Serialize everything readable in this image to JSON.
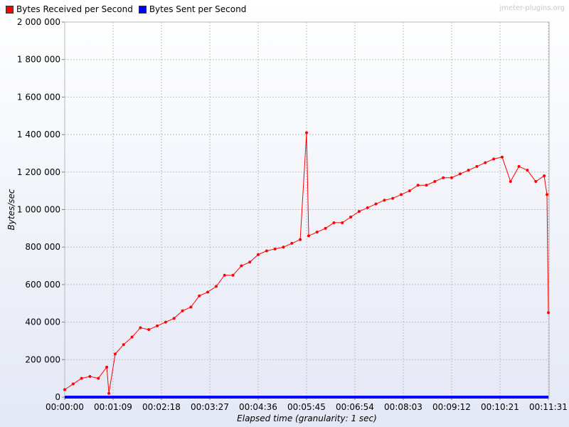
{
  "watermark": "jmeter-plugins.org",
  "chart_data": {
    "type": "line",
    "title": "",
    "xlabel": "Elapsed time (granularity: 1 sec)",
    "ylabel": "Bytes/sec",
    "xlim": [
      0,
      691
    ],
    "ylim": [
      0,
      2000000
    ],
    "grid": true,
    "legend_position": "top-left",
    "x_ticks": [
      {
        "value": 0,
        "label": "00:00:00"
      },
      {
        "value": 69,
        "label": "00:01:09"
      },
      {
        "value": 138,
        "label": "00:02:18"
      },
      {
        "value": 207,
        "label": "00:03:27"
      },
      {
        "value": 276,
        "label": "00:04:36"
      },
      {
        "value": 345,
        "label": "00:05:45"
      },
      {
        "value": 414,
        "label": "00:06:54"
      },
      {
        "value": 483,
        "label": "00:08:03"
      },
      {
        "value": 552,
        "label": "00:09:12"
      },
      {
        "value": 621,
        "label": "00:10:21"
      },
      {
        "value": 690,
        "label": "00:11:31"
      }
    ],
    "y_ticks": [
      {
        "value": 0,
        "label": "0"
      },
      {
        "value": 200000,
        "label": "200 000"
      },
      {
        "value": 400000,
        "label": "400 000"
      },
      {
        "value": 600000,
        "label": "600 000"
      },
      {
        "value": 800000,
        "label": "800 000"
      },
      {
        "value": 1000000,
        "label": "1 000 000"
      },
      {
        "value": 1200000,
        "label": "1 200 000"
      },
      {
        "value": 1400000,
        "label": "1 400 000"
      },
      {
        "value": 1600000,
        "label": "1 600 000"
      },
      {
        "value": 1800000,
        "label": "1 800 000"
      },
      {
        "value": 2000000,
        "label": "2 000 000"
      }
    ],
    "series": [
      {
        "name": "Bytes Received per Second",
        "color": "#ff0000",
        "x": [
          0,
          12,
          24,
          36,
          48,
          60,
          63,
          72,
          84,
          96,
          108,
          120,
          132,
          144,
          156,
          168,
          180,
          192,
          204,
          216,
          228,
          240,
          252,
          264,
          276,
          288,
          300,
          312,
          324,
          336,
          345,
          348,
          360,
          372,
          384,
          396,
          408,
          420,
          432,
          444,
          456,
          468,
          480,
          492,
          504,
          516,
          528,
          540,
          552,
          564,
          576,
          588,
          600,
          612,
          624,
          636,
          648,
          660,
          672,
          684,
          688,
          690
        ],
        "y": [
          40000,
          70000,
          100000,
          110000,
          100000,
          160000,
          20000,
          230000,
          280000,
          320000,
          370000,
          360000,
          380000,
          400000,
          420000,
          460000,
          480000,
          540000,
          560000,
          590000,
          650000,
          650000,
          700000,
          720000,
          760000,
          780000,
          790000,
          800000,
          820000,
          840000,
          1410000,
          860000,
          880000,
          900000,
          930000,
          930000,
          960000,
          990000,
          1010000,
          1030000,
          1050000,
          1060000,
          1080000,
          1100000,
          1130000,
          1130000,
          1150000,
          1170000,
          1170000,
          1190000,
          1210000,
          1230000,
          1250000,
          1270000,
          1280000,
          1150000,
          1230000,
          1210000,
          1150000,
          1180000,
          1080000,
          450000
        ]
      },
      {
        "name": "Bytes Sent per Second",
        "color": "#0000ff",
        "x": [
          0,
          690
        ],
        "y": [
          0,
          0
        ]
      }
    ]
  }
}
